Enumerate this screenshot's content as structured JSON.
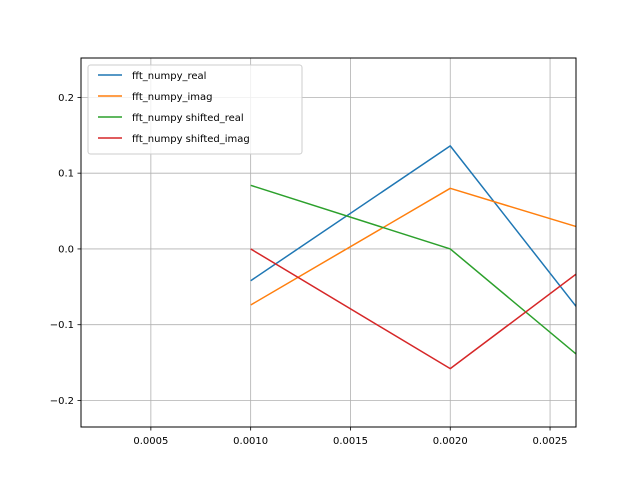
{
  "chart_data": {
    "type": "line",
    "title": "",
    "xlabel": "",
    "ylabel": "",
    "xlim": [
      0.00015,
      0.00263
    ],
    "ylim": [
      -0.235,
      0.252
    ],
    "grid": true,
    "legend_position": "top-left",
    "x_ticks": [
      {
        "value": 0.0005,
        "label": "0.0005"
      },
      {
        "value": 0.001,
        "label": "0.0010"
      },
      {
        "value": 0.0015,
        "label": "0.0015"
      },
      {
        "value": 0.002,
        "label": "0.0020"
      },
      {
        "value": 0.0025,
        "label": "0.0025"
      }
    ],
    "y_ticks": [
      {
        "value": -0.2,
        "label": "−0.2"
      },
      {
        "value": -0.1,
        "label": "−0.1"
      },
      {
        "value": 0.0,
        "label": "0.0"
      },
      {
        "value": 0.1,
        "label": "0.1"
      },
      {
        "value": 0.2,
        "label": "0.2"
      }
    ],
    "series": [
      {
        "name": "fft_numpy_real",
        "color": "#1f77b4",
        "x": [
          0.001,
          0.002,
          0.003
        ],
        "y": [
          -0.042,
          0.136,
          -0.2
        ]
      },
      {
        "name": "fft_numpy_imag",
        "color": "#ff7f0e",
        "x": [
          0.001,
          0.002,
          0.003
        ],
        "y": [
          -0.074,
          0.08,
          0.0
        ]
      },
      {
        "name": "fft_numpy shifted_real",
        "color": "#2ca02c",
        "x": [
          0.001,
          0.002,
          0.003
        ],
        "y": [
          0.084,
          0.0,
          -0.22
        ]
      },
      {
        "name": "fft_numpy shifted_imag",
        "color": "#d62728",
        "x": [
          0.001,
          0.002,
          0.003
        ],
        "y": [
          0.0,
          -0.158,
          0.04
        ]
      }
    ]
  }
}
